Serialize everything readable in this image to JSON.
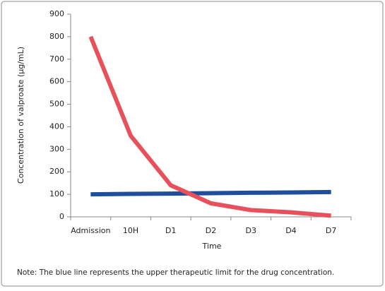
{
  "chart_data": {
    "type": "line",
    "y_label": "Concentration of valproate (µg/mL)",
    "x_label": "Time",
    "note": "Note: The blue line represents the upper therapeutic limit for the drug concentration.",
    "categories": [
      "Admission",
      "10H",
      "D1",
      "D2",
      "D3",
      "D4",
      "D7"
    ],
    "series": [
      {
        "color": "#e8505b",
        "values": [
          800,
          360,
          140,
          60,
          30,
          20,
          5
        ]
      },
      {
        "color": "#1f4e9c",
        "values": [
          100,
          102,
          103,
          105,
          107,
          108,
          110
        ]
      }
    ],
    "ylim": [
      0,
      900
    ],
    "yticks": [
      0,
      100,
      200,
      300,
      400,
      500,
      600,
      700,
      800,
      900
    ]
  }
}
